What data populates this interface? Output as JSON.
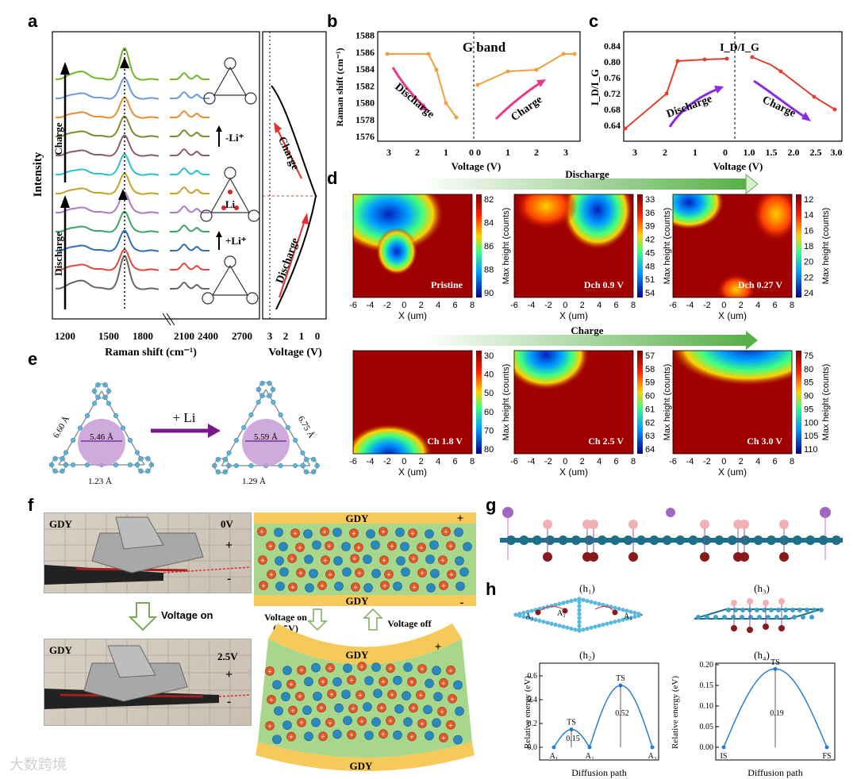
{
  "panel_labels": [
    "a",
    "b",
    "c",
    "d",
    "e",
    "f",
    "g",
    "h"
  ],
  "a": {
    "ylabel": "Intensity",
    "xlabel": "Raman shift (cm⁻¹)",
    "xticks": [
      "1200",
      "1500",
      "1800",
      "2100",
      "2400",
      "2700"
    ],
    "charge_label": "Charge",
    "discharge_label": "Discharge",
    "minus_li": "-Li⁺",
    "plus_li": "+Li⁺",
    "li_label": "Li",
    "vaxis_label": "Voltage (V)",
    "vticks": [
      "3",
      "2",
      "1",
      "0"
    ],
    "curve_colors": [
      "#6fb62b",
      "#6a9bd6",
      "#e98c30",
      "#7b8a2b",
      "#8a5a6a",
      "#2bbfcf",
      "#c6a12a",
      "#a879c9",
      "#3aa36a",
      "#2f6fb6",
      "#e2463a",
      "#666666"
    ]
  },
  "b": {
    "title": "G band",
    "ylabel": "Raman shift (cm⁻¹)",
    "xlabel": "Voltage (V)",
    "yticks": [
      "1576",
      "1578",
      "1580",
      "1582",
      "1584",
      "1586",
      "1588"
    ],
    "xticks_left": [
      "3",
      "2",
      "1",
      "0"
    ],
    "xticks_right": [
      "0",
      "1",
      "2",
      "3"
    ],
    "discharge_label": "Discharge",
    "charge_label": "Charge"
  },
  "c": {
    "title": "I_D/I_G",
    "ylabel": "I_D/I_G",
    "xlabel": "Voltage (V)",
    "yticks": [
      "0.64",
      "0.68",
      "0.72",
      "0.76",
      "0.80",
      "0.84"
    ],
    "xticks_left": [
      "3",
      "2",
      "1",
      "0"
    ],
    "xticks_right": [
      "1.0",
      "1.5",
      "2.0",
      "2.5",
      "3.0"
    ],
    "discharge_label": "Discharge",
    "charge_label": "Charge"
  },
  "d": {
    "discharge_label": "Discharge",
    "charge_label": "Charge",
    "xlabel": "X (um)",
    "xticks": [
      "-6",
      "-4",
      "-2",
      "0",
      "2",
      "4",
      "6",
      "8"
    ],
    "cbar_label": "Max height (counts)",
    "maps": [
      {
        "name": "Pristine",
        "ticks": [
          "82",
          "84",
          "86",
          "88",
          "90"
        ]
      },
      {
        "name": "Dch 0.9 V",
        "ticks": [
          "33",
          "36",
          "39",
          "42",
          "45",
          "48",
          "51",
          "54"
        ]
      },
      {
        "name": "Dch 0.27 V",
        "ticks": [
          "12",
          "14",
          "16",
          "18",
          "20",
          "22",
          "24"
        ]
      },
      {
        "name": "Ch 1.8 V",
        "ticks": [
          "30",
          "40",
          "50",
          "60",
          "70",
          "80"
        ]
      },
      {
        "name": "Ch 2.5 V",
        "ticks": [
          "57",
          "58",
          "59",
          "60",
          "61",
          "62",
          "63",
          "64"
        ]
      },
      {
        "name": "Ch 3.0 V",
        "ticks": [
          "75",
          "80",
          "85",
          "90",
          "95",
          "100",
          "105",
          "110"
        ]
      }
    ]
  },
  "e": {
    "arrow_label": "+ Li",
    "left_pore": "5.46 Å",
    "left_side": "6.60 Å",
    "left_bond": "1.23 Å",
    "right_pore": "5.59 Å",
    "right_side": "6.75 Å",
    "right_bond": "1.29 Å"
  },
  "f": {
    "photo1_tag": "GDY",
    "photo1_voltage": "0V",
    "photo2_tag": "GDY",
    "photo2_voltage": "2.5V",
    "voltage_on": "Voltage on",
    "voltage_on_2": "Voltage on",
    "voltage_on_value": "(2.5V)",
    "voltage_off": "Voltage off",
    "gdy": "GDY",
    "plus": "+",
    "minus": "-"
  },
  "h": {
    "h1": "(h₁)",
    "h2": "(h₂)",
    "h3": "(h₃)",
    "h4": "(h₄)",
    "ylabel": "Relative energy (eV)",
    "xlabel": "Diffusion path",
    "ts": "TS",
    "h2_barrier1": "0.15",
    "h2_barrier2": "0.52",
    "h2_points": [
      "A₁",
      "A₂",
      "A₃"
    ],
    "h2_yticks": [
      "0.0",
      "0.2",
      "0.4",
      "0.6"
    ],
    "h4_barrier": "0.19",
    "h4_points": [
      "IS",
      "FS"
    ],
    "h4_yticks": [
      "0.00",
      "0.05",
      "0.10",
      "0.15",
      "0.20"
    ],
    "h1_sites": [
      "A₁",
      "A₂",
      "A₃"
    ]
  },
  "watermark": "大数跨境"
}
